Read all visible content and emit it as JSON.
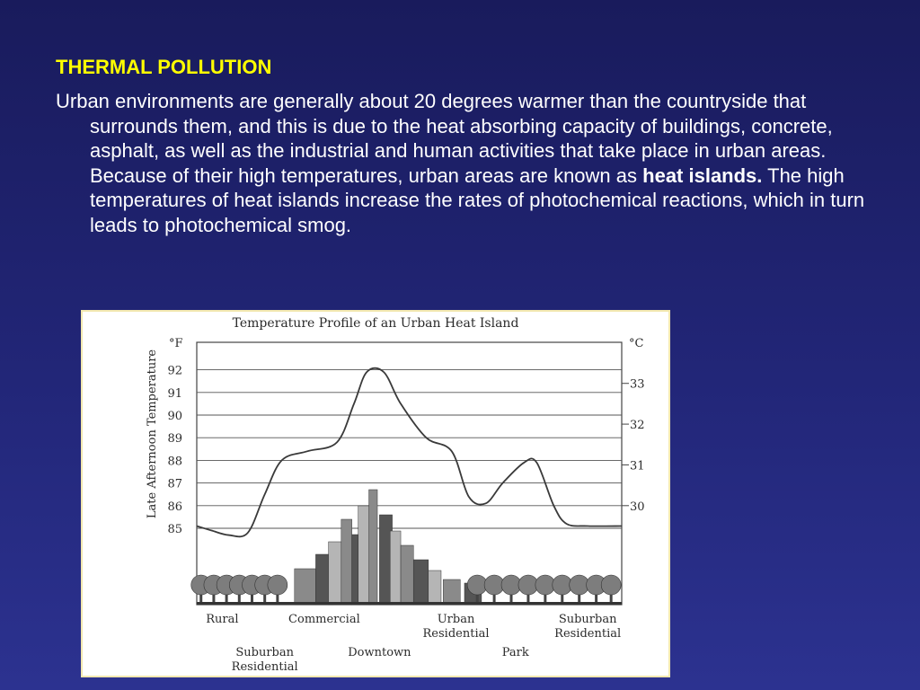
{
  "slide": {
    "title": "THERMAL POLLUTION",
    "body_part1": "Urban environments are generally about 20 degrees warmer than the countryside that surrounds them, and this is due to the heat absorbing capacity of buildings, concrete, asphalt, as well as the industrial and human activities that take place in urban areas. Because of their high temperatures, urban areas are known as ",
    "body_bold": "heat islands.",
    "body_part2": " The high temperatures of heat islands increase the rates of photochemical reactions, which in turn leads to photochemical smog."
  },
  "colors": {
    "background": "#222678",
    "title": "#ffff00",
    "body_text": "#ffffff",
    "figure_background": "#ffffff",
    "curve": "#3a3a3a"
  },
  "chart_data": {
    "type": "line",
    "title": "Temperature Profile of an Urban Heat Island",
    "ylabel": "Late Afternoon Temperature",
    "y_unit_left": "°F",
    "y_unit_right": "°C",
    "ylim": [
      84.5,
      93
    ],
    "yticks_left": [
      85,
      86,
      87,
      88,
      89,
      90,
      91,
      92
    ],
    "yticks_right": [
      {
        "label": "30",
        "f": 86
      },
      {
        "label": "31",
        "f": 87.8
      },
      {
        "label": "32",
        "f": 89.6
      },
      {
        "label": "33",
        "f": 91.4
      }
    ],
    "grid": true,
    "x_zone_labels": [
      {
        "name": "Rural",
        "text": [
          "Rural"
        ],
        "at": 0.06,
        "row": "upper"
      },
      {
        "name": "Commercial",
        "text": [
          "Commercial"
        ],
        "at": 0.3,
        "row": "upper"
      },
      {
        "name": "Urban Residential",
        "text": [
          "Urban",
          "Residential"
        ],
        "at": 0.61,
        "row": "upper"
      },
      {
        "name": "Suburban Residential (right)",
        "text": [
          "Suburban",
          "Residential"
        ],
        "at": 0.92,
        "row": "upper"
      },
      {
        "name": "Suburban Residential (left)",
        "text": [
          "Suburban",
          "Residential"
        ],
        "at": 0.16,
        "row": "lower"
      },
      {
        "name": "Downtown",
        "text": [
          "Downtown"
        ],
        "at": 0.43,
        "row": "lower"
      },
      {
        "name": "Park",
        "text": [
          "Park"
        ],
        "at": 0.75,
        "row": "lower"
      }
    ],
    "series": [
      {
        "points": [
          [
            0.0,
            85.1
          ],
          [
            0.035,
            84.9
          ],
          [
            0.075,
            84.7
          ],
          [
            0.12,
            84.8
          ],
          [
            0.16,
            86.5
          ],
          [
            0.2,
            88.0
          ],
          [
            0.26,
            88.4
          ],
          [
            0.33,
            88.8
          ],
          [
            0.37,
            90.5
          ],
          [
            0.4,
            91.9
          ],
          [
            0.44,
            91.9
          ],
          [
            0.48,
            90.5
          ],
          [
            0.54,
            89.0
          ],
          [
            0.6,
            88.4
          ],
          [
            0.64,
            86.4
          ],
          [
            0.68,
            86.1
          ],
          [
            0.72,
            87.0
          ],
          [
            0.77,
            87.9
          ],
          [
            0.8,
            87.9
          ],
          [
            0.84,
            86.0
          ],
          [
            0.87,
            85.2
          ],
          [
            0.92,
            85.1
          ],
          [
            1.0,
            85.1
          ]
        ]
      }
    ]
  }
}
